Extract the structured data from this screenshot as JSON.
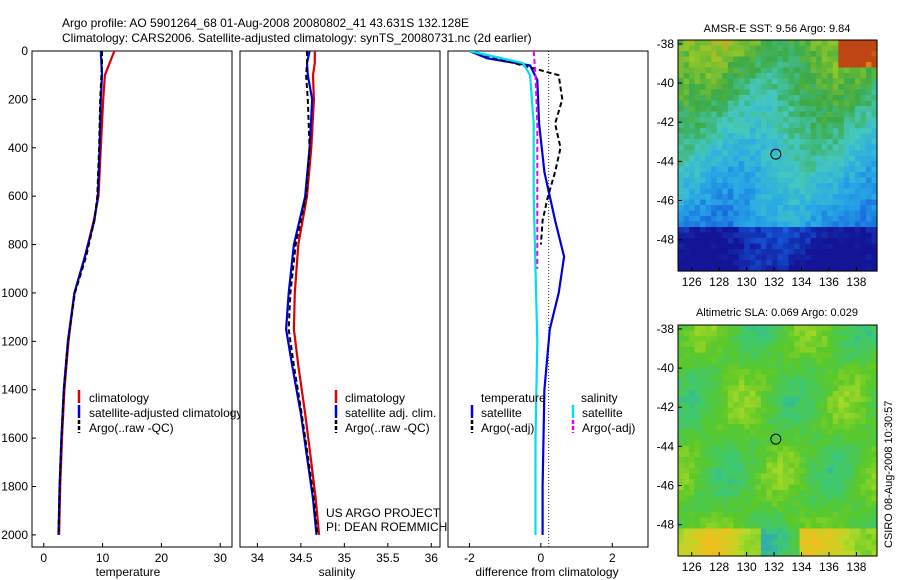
{
  "header": {
    "line1": "Argo profile: AO 5901264_68 01-Aug-2008 20080802_41 43.631S 132.128E",
    "line2": "Climatology: CARS2006. Satellite-adjusted climatology: synTS_20080731.nc (2d earlier)"
  },
  "credit": {
    "line1": "US ARGO PROJECT",
    "line2": "PI: DEAN ROEMMICH"
  },
  "side_stamp": "CSIRO 08-Aug-2008 10:30:57",
  "colors": {
    "climatology": "#dd0000",
    "satellite": "#0000dd",
    "argo": "#000000",
    "sat_salinity": "#00e0e8",
    "argo_salinity": "#ee00ee"
  },
  "chart_data": [
    {
      "type": "line",
      "xlabel": "temperature",
      "ylabel": "",
      "xlim": [
        -2,
        32
      ],
      "ylim": [
        2050,
        0
      ],
      "xticks": [
        0,
        10,
        20,
        30
      ],
      "yticks": [
        0,
        200,
        400,
        600,
        800,
        1000,
        1200,
        1400,
        1600,
        1800,
        2000
      ],
      "legend": [
        "climatology",
        "satellite-adjusted climatology",
        "Argo(..raw -QC)"
      ],
      "legend_position": "lower-center",
      "series": [
        {
          "name": "climatology",
          "color": "#dd0000",
          "x": [
            12.0,
            11.2,
            10.4,
            10.1,
            9.7,
            9.3,
            8.5,
            7.0,
            5.2,
            4.2,
            3.5,
            3.1,
            2.8,
            2.6
          ],
          "y": [
            0,
            50,
            100,
            200,
            400,
            600,
            700,
            850,
            1000,
            1200,
            1400,
            1600,
            1800,
            2000
          ]
        },
        {
          "name": "satellite-adjusted climatology",
          "color": "#0000dd",
          "x": [
            9.7,
            9.8,
            9.9,
            9.7,
            9.5,
            9.2,
            8.6,
            7.0,
            5.2,
            4.1,
            3.4,
            3.0,
            2.7,
            2.5
          ],
          "y": [
            0,
            50,
            100,
            200,
            400,
            600,
            700,
            850,
            1000,
            1200,
            1400,
            1600,
            1800,
            2000
          ]
        },
        {
          "name": "Argo(..raw -QC)",
          "color": "#000000",
          "x": [
            9.9,
            9.9,
            9.8,
            9.6,
            9.4,
            9.1,
            8.6,
            7.2,
            5.3,
            4.1,
            3.4,
            3.0,
            2.7,
            2.5
          ],
          "y": [
            0,
            50,
            100,
            200,
            400,
            600,
            700,
            850,
            1000,
            1200,
            1400,
            1600,
            1800,
            2000
          ]
        }
      ]
    },
    {
      "type": "line",
      "xlabel": "salinity",
      "xlim": [
        33.8,
        36.1
      ],
      "ylim": [
        2050,
        0
      ],
      "xticks": [
        34,
        34.5,
        35,
        35.5,
        36
      ],
      "legend": [
        "climatology",
        "satellite adj. clim.",
        "Argo(..raw -QC)"
      ],
      "legend_position": "lower-right",
      "series": [
        {
          "name": "climatology",
          "color": "#dd0000",
          "x": [
            34.66,
            34.66,
            34.64,
            34.65,
            34.62,
            34.57,
            34.47,
            34.43,
            34.42,
            34.47,
            34.55,
            34.62,
            34.67,
            34.71
          ],
          "y": [
            0,
            50,
            100,
            200,
            400,
            600,
            800,
            1000,
            1150,
            1300,
            1500,
            1700,
            1850,
            2000
          ]
        },
        {
          "name": "satellite adj. clim.",
          "color": "#0000dd",
          "x": [
            34.6,
            34.57,
            34.58,
            34.63,
            34.6,
            34.55,
            34.42,
            34.36,
            34.33,
            34.4,
            34.5,
            34.58,
            34.64,
            34.68
          ],
          "y": [
            0,
            50,
            100,
            200,
            400,
            600,
            800,
            1000,
            1150,
            1300,
            1500,
            1700,
            1850,
            2000
          ]
        },
        {
          "name": "Argo(..raw -QC)",
          "color": "#000000",
          "x": [
            34.57,
            34.57,
            34.56,
            34.58,
            34.6,
            34.56,
            34.44,
            34.38,
            34.36,
            34.42,
            34.51,
            34.59,
            34.65,
            34.69
          ],
          "y": [
            0,
            50,
            100,
            200,
            400,
            600,
            800,
            1000,
            1150,
            1300,
            1500,
            1700,
            1850,
            2000
          ]
        }
      ]
    },
    {
      "type": "line",
      "xlabel": "difference from climatology",
      "xlim": [
        -2.6,
        3.0
      ],
      "ylim": [
        2050,
        0
      ],
      "xticks": [
        -2,
        0,
        2
      ],
      "legend_groups": [
        {
          "title": "temperature",
          "entries": [
            "satellite",
            "Argo(-adj)"
          ]
        },
        {
          "title": "salinity",
          "entries": [
            "satellite",
            "Argo(-adj)"
          ]
        }
      ],
      "series": [
        {
          "name": "temperature satellite",
          "color": "#0000dd",
          "x": [
            -2.0,
            -1.5,
            -0.3,
            -0.1,
            -0.05,
            0.1,
            0.4,
            0.65,
            0.5,
            0.25,
            0.1,
            0.05,
            0.05
          ],
          "y": [
            0,
            30,
            60,
            120,
            300,
            500,
            700,
            850,
            1000,
            1150,
            1400,
            1800,
            2000
          ]
        },
        {
          "name": "temperature Argo(-adj)",
          "color": "#000000",
          "x": [
            -2.0,
            -1.0,
            0.5,
            0.6,
            0.4,
            0.55,
            0.4,
            0.2,
            0.05,
            0.0
          ],
          "y": [
            0,
            40,
            100,
            200,
            300,
            400,
            500,
            600,
            700,
            800
          ]
        },
        {
          "name": "salinity satellite",
          "color": "#00e0e8",
          "x": [
            -2.0,
            -0.5,
            -0.3,
            -0.2,
            -0.2,
            -0.15,
            -0.1,
            -0.15,
            -0.15
          ],
          "y": [
            0,
            50,
            100,
            300,
            600,
            900,
            1200,
            1600,
            2000
          ]
        },
        {
          "name": "salinity Argo(-adj)",
          "color": "#ee00ee",
          "x": [
            -0.2,
            -0.15,
            -0.1,
            -0.1,
            -0.1,
            -0.1
          ],
          "y": [
            0,
            100,
            300,
            500,
            700,
            900
          ]
        }
      ]
    },
    {
      "type": "heatmap",
      "title": "AMSR-E SST: 9.56 Argo: 9.84",
      "xlim": [
        125,
        139.5
      ],
      "ylim": [
        -49.6,
        -37.8
      ],
      "xticks": [
        126,
        128,
        130,
        132,
        134,
        136,
        138
      ],
      "yticks": [
        -38,
        -40,
        -42,
        -44,
        -46,
        -48
      ],
      "marker": {
        "lon": 132.128,
        "lat": -43.631
      }
    },
    {
      "type": "heatmap",
      "title": "Altimetric SLA: 0.069 Argo: 0.029",
      "xlim": [
        125,
        139.5
      ],
      "ylim": [
        -49.6,
        -37.8
      ],
      "xticks": [
        126,
        128,
        130,
        132,
        134,
        136,
        138
      ],
      "yticks": [
        -38,
        -40,
        -42,
        -44,
        -46,
        -48
      ],
      "marker": {
        "lon": 132.128,
        "lat": -43.631
      }
    }
  ]
}
